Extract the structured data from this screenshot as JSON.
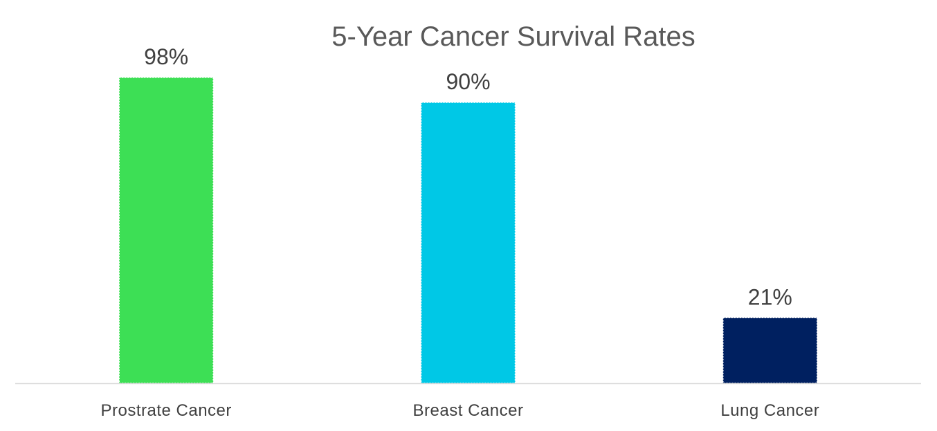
{
  "chart_data": {
    "type": "bar",
    "title": "5-Year Cancer Survival Rates",
    "xlabel": "",
    "ylabel": "",
    "categories": [
      "Prostrate Cancer",
      "Breast Cancer",
      "Lung Cancer"
    ],
    "values": [
      98,
      90,
      21
    ],
    "data_labels": [
      "98%",
      "90%",
      "21%"
    ],
    "unit": "%",
    "ylim": [
      0,
      100
    ],
    "colors": [
      "#3ddf55",
      "#00c8e6",
      "#002060"
    ],
    "grid": false,
    "legend": "none"
  }
}
